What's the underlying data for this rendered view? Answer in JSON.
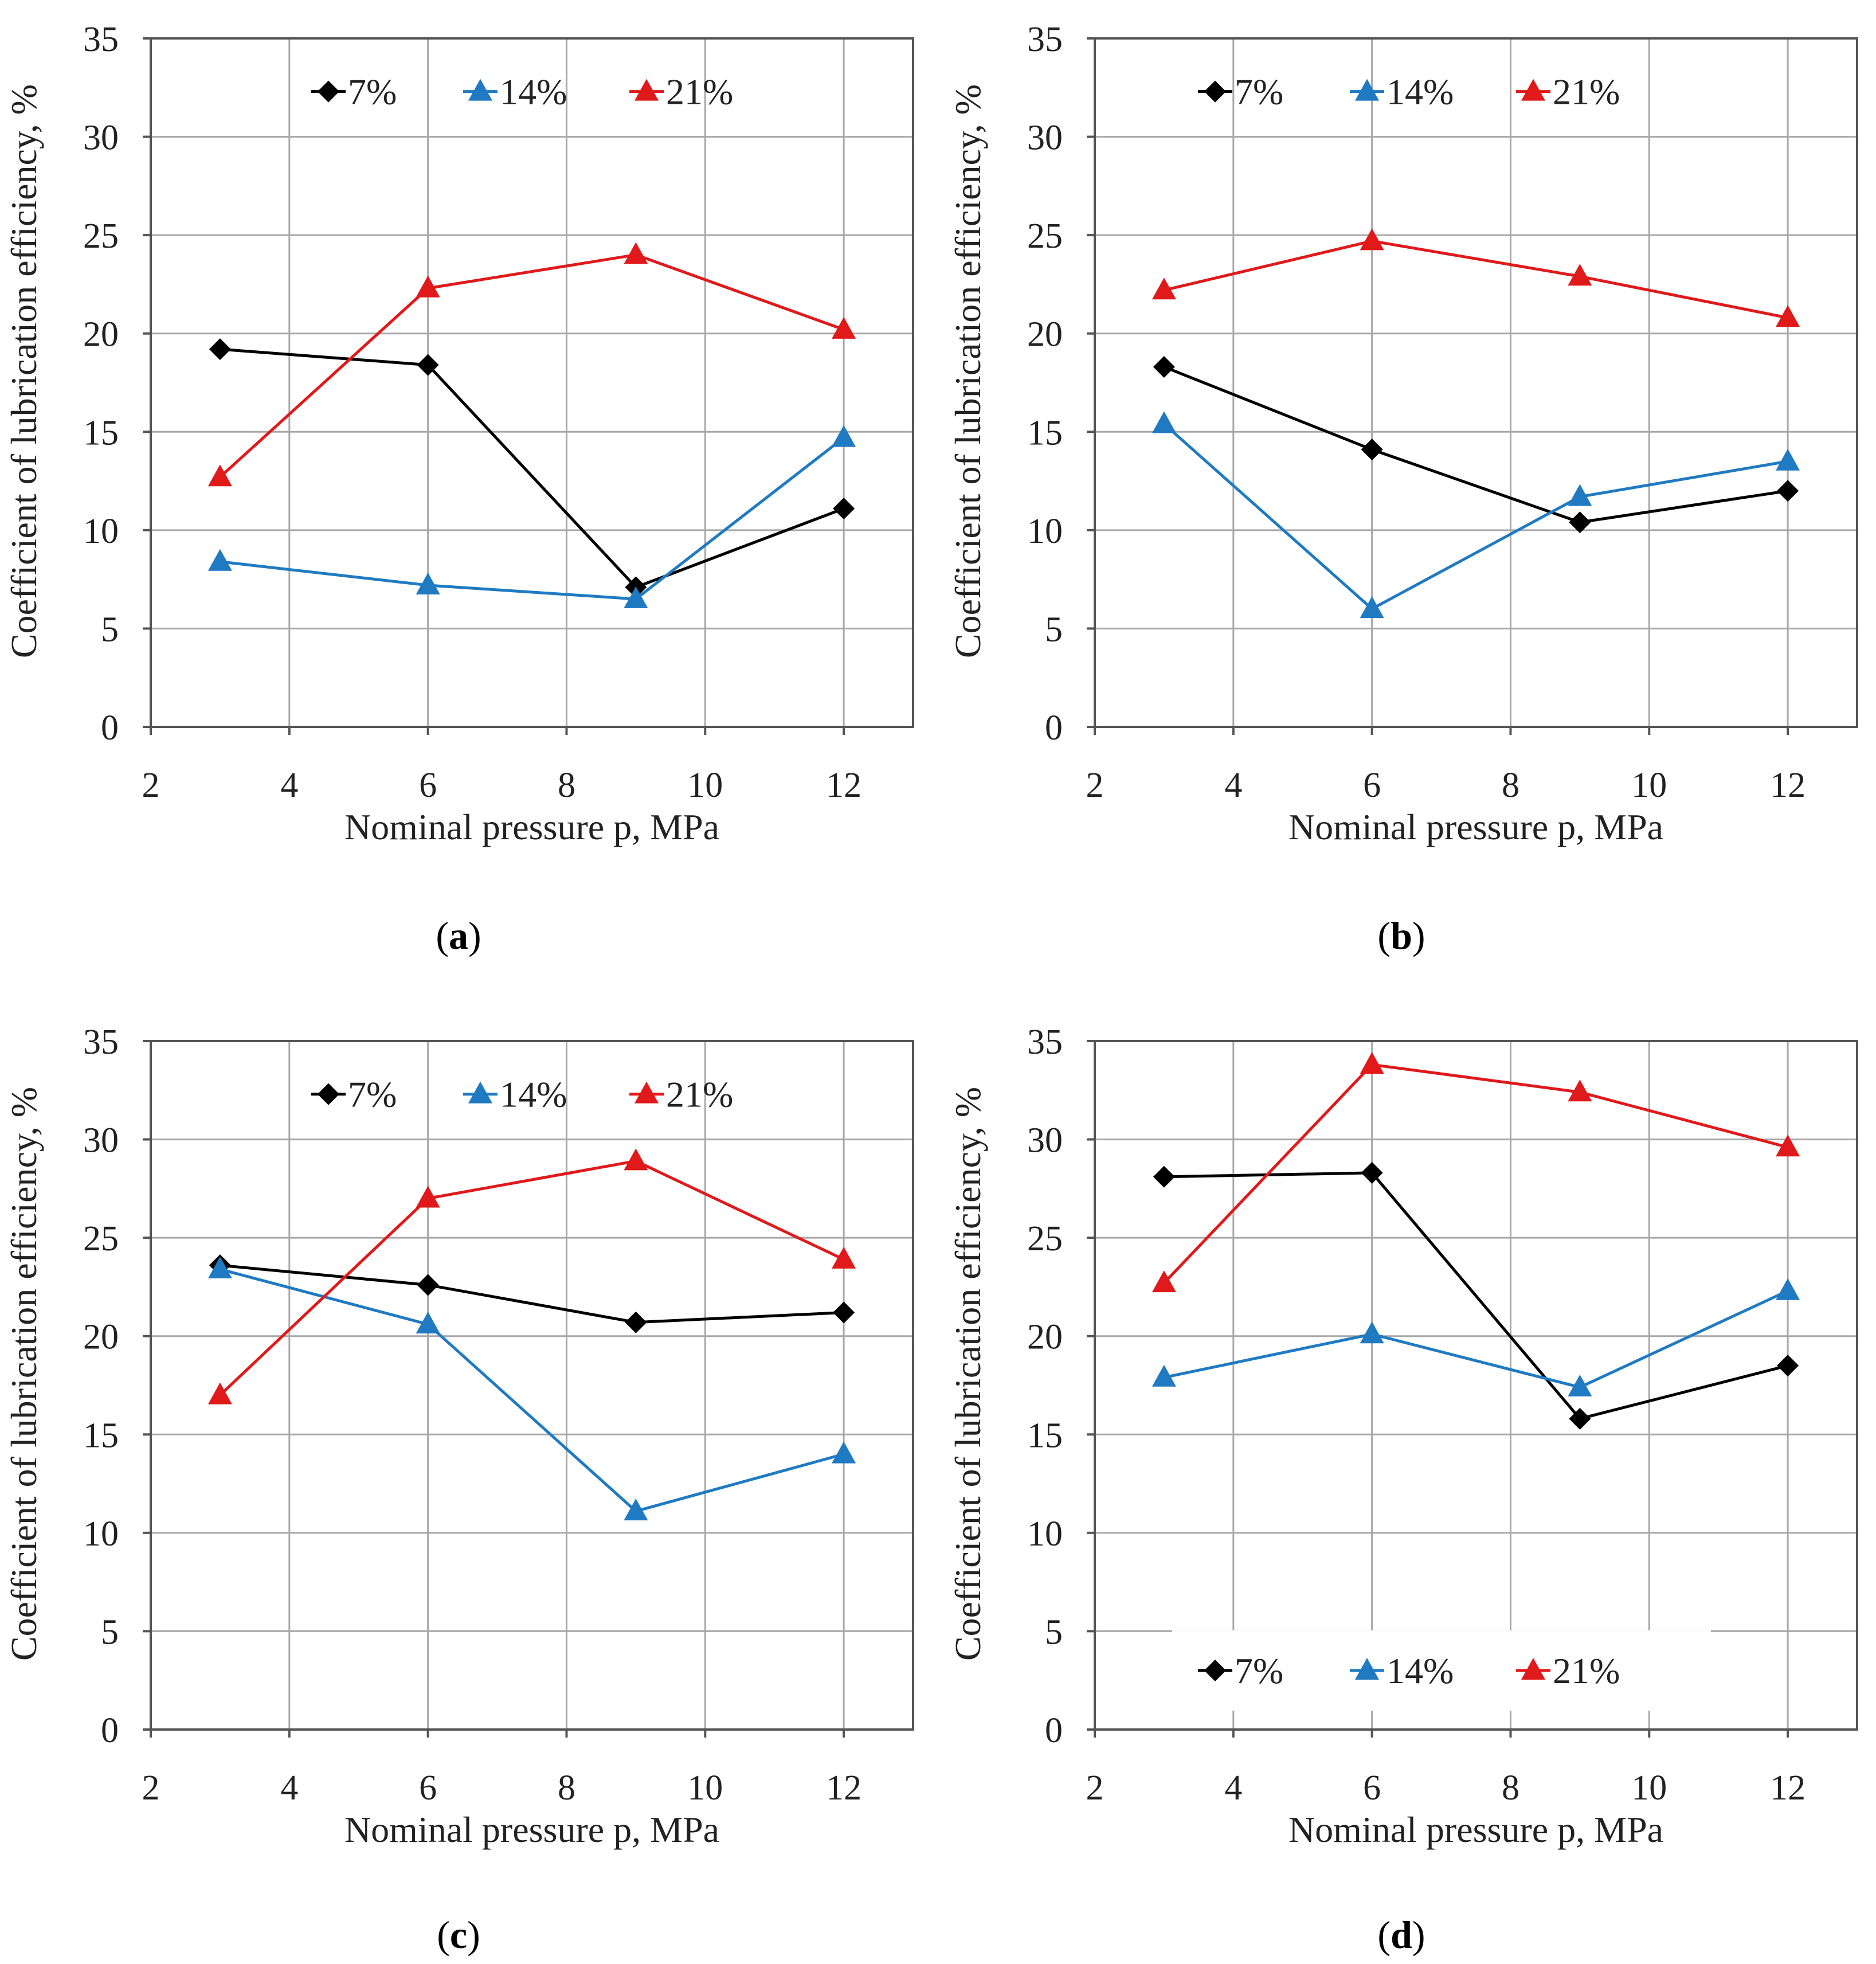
{
  "figure": {
    "captions": [
      "(a)",
      "(b)",
      "(c)",
      "(d)"
    ],
    "caption_letters": [
      "a",
      "b",
      "c",
      "d"
    ]
  },
  "colors": {
    "s7": "#000000",
    "s14": "#1f7ac2",
    "s21": "#e0191b",
    "grid": "#a8a8a8",
    "axis": "#555555"
  },
  "chart_data": [
    {
      "id": "a",
      "type": "line",
      "xlabel": "Nominal pressure p, MPa",
      "ylabel": "Coefficient of lubrication efficiency, %",
      "xlim": [
        2,
        13
      ],
      "ylim": [
        0,
        35
      ],
      "xticks": [
        2,
        4,
        6,
        8,
        10,
        12
      ],
      "yticks": [
        0,
        5,
        10,
        15,
        20,
        25,
        30,
        35
      ],
      "x": [
        3,
        6,
        9,
        12
      ],
      "legend_position": "top",
      "series": [
        {
          "name": "7%",
          "marker": "diamond",
          "values": [
            19.2,
            18.4,
            7.1,
            11.1
          ]
        },
        {
          "name": "14%",
          "marker": "triangle",
          "values": [
            8.4,
            7.2,
            6.5,
            14.7
          ]
        },
        {
          "name": "21%",
          "marker": "triangle",
          "values": [
            12.7,
            22.3,
            24.0,
            20.2
          ]
        }
      ]
    },
    {
      "id": "b",
      "type": "line",
      "xlabel": "Nominal pressure p, MPa",
      "ylabel": "Coefficient of lubrication efficiency, %",
      "xlim": [
        2,
        13
      ],
      "ylim": [
        0,
        35
      ],
      "xticks": [
        2,
        4,
        6,
        8,
        10,
        12
      ],
      "yticks": [
        0,
        5,
        10,
        15,
        20,
        25,
        30,
        35
      ],
      "x": [
        3,
        6,
        9,
        12
      ],
      "legend_position": "top",
      "series": [
        {
          "name": "7%",
          "marker": "diamond",
          "values": [
            18.3,
            14.1,
            10.4,
            12.0
          ]
        },
        {
          "name": "14%",
          "marker": "triangle",
          "values": [
            15.4,
            6.0,
            11.7,
            13.5
          ]
        },
        {
          "name": "21%",
          "marker": "triangle",
          "values": [
            22.2,
            24.7,
            22.9,
            20.8
          ]
        }
      ]
    },
    {
      "id": "c",
      "type": "line",
      "xlabel": "Nominal pressure p, MPa",
      "ylabel": "Coefficient of lubrication efficiency, %",
      "xlim": [
        2,
        13
      ],
      "ylim": [
        0,
        35
      ],
      "xticks": [
        2,
        4,
        6,
        8,
        10,
        12
      ],
      "yticks": [
        0,
        5,
        10,
        15,
        20,
        25,
        30,
        35
      ],
      "x": [
        3,
        6,
        9,
        12
      ],
      "legend_position": "top",
      "series": [
        {
          "name": "7%",
          "marker": "diamond",
          "values": [
            23.6,
            22.6,
            20.7,
            21.2
          ]
        },
        {
          "name": "14%",
          "marker": "triangle",
          "values": [
            23.4,
            20.6,
            11.1,
            14.0
          ]
        },
        {
          "name": "21%",
          "marker": "triangle",
          "values": [
            17.0,
            27.0,
            28.9,
            23.9
          ]
        }
      ]
    },
    {
      "id": "d",
      "type": "line",
      "xlabel": "Nominal pressure p, MPa",
      "ylabel": "Coefficient of lubrication efficiency, %",
      "xlim": [
        2,
        13
      ],
      "ylim": [
        0,
        35
      ],
      "xticks": [
        2,
        4,
        6,
        8,
        10,
        12
      ],
      "yticks": [
        0,
        5,
        10,
        15,
        20,
        25,
        30,
        35
      ],
      "x": [
        3,
        6,
        9,
        12
      ],
      "legend_position": "bottom",
      "series": [
        {
          "name": "7%",
          "marker": "diamond",
          "values": [
            28.1,
            28.3,
            15.8,
            18.5
          ]
        },
        {
          "name": "14%",
          "marker": "triangle",
          "values": [
            17.9,
            20.1,
            17.4,
            22.3
          ]
        },
        {
          "name": "21%",
          "marker": "triangle",
          "values": [
            22.7,
            33.8,
            32.4,
            29.6
          ]
        }
      ]
    }
  ]
}
